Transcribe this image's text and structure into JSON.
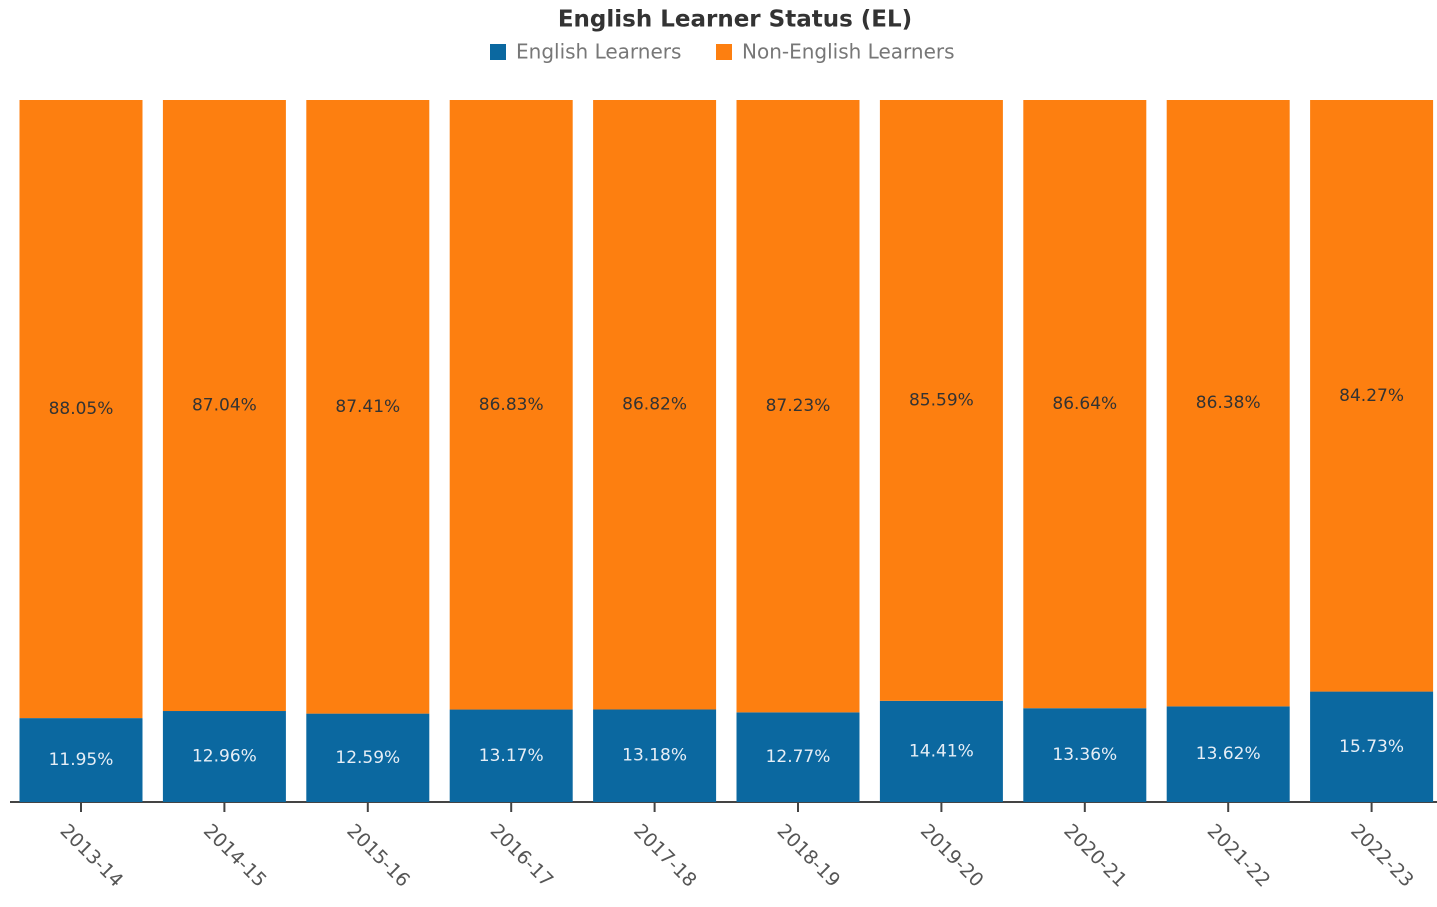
{
  "chart_data": {
    "type": "stacked_bar",
    "title": "English Learner Status (EL)",
    "categories": [
      "2013-14",
      "2014-15",
      "2015-16",
      "2016-17",
      "2017-18",
      "2018-19",
      "2019-20",
      "2020-21",
      "2021-22",
      "2022-23"
    ],
    "series": [
      {
        "name": "English Learners",
        "color": "#0b68a0",
        "values": [
          11.95,
          12.96,
          12.59,
          13.17,
          13.18,
          12.77,
          14.41,
          13.36,
          13.62,
          15.73
        ],
        "value_labels": [
          "11.95%",
          "12.96%",
          "12.59%",
          "13.17%",
          "13.18%",
          "12.77%",
          "14.41%",
          "13.36%",
          "13.62%",
          "15.73%"
        ]
      },
      {
        "name": "Non-English Learners",
        "color": "#fd7f10",
        "values": [
          88.05,
          87.04,
          87.41,
          86.83,
          86.82,
          87.23,
          85.59,
          86.64,
          86.38,
          84.27
        ],
        "value_labels": [
          "88.05%",
          "87.04%",
          "87.41%",
          "86.83%",
          "86.82%",
          "87.23%",
          "85.59%",
          "86.64%",
          "86.38%",
          "84.27%"
        ]
      }
    ],
    "ylim": [
      0,
      100
    ],
    "legend": "top"
  }
}
